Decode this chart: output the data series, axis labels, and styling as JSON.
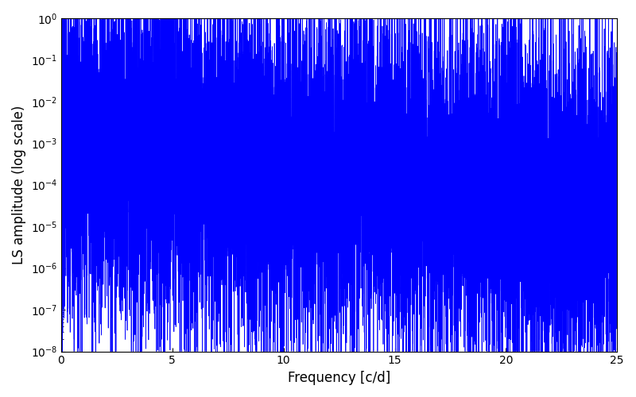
{
  "title": "",
  "xlabel": "Frequency [c/d]",
  "ylabel": "LS amplitude (log scale)",
  "xlim": [
    0,
    25
  ],
  "ylim": [
    1e-08,
    1.0
  ],
  "line_color": "#0000ff",
  "line_width": 0.5,
  "figsize": [
    8.0,
    5.0
  ],
  "dpi": 100,
  "freq_min": 0.0,
  "freq_max": 25.0,
  "n_points": 12000,
  "seed": 7,
  "background_color": "#ffffff"
}
